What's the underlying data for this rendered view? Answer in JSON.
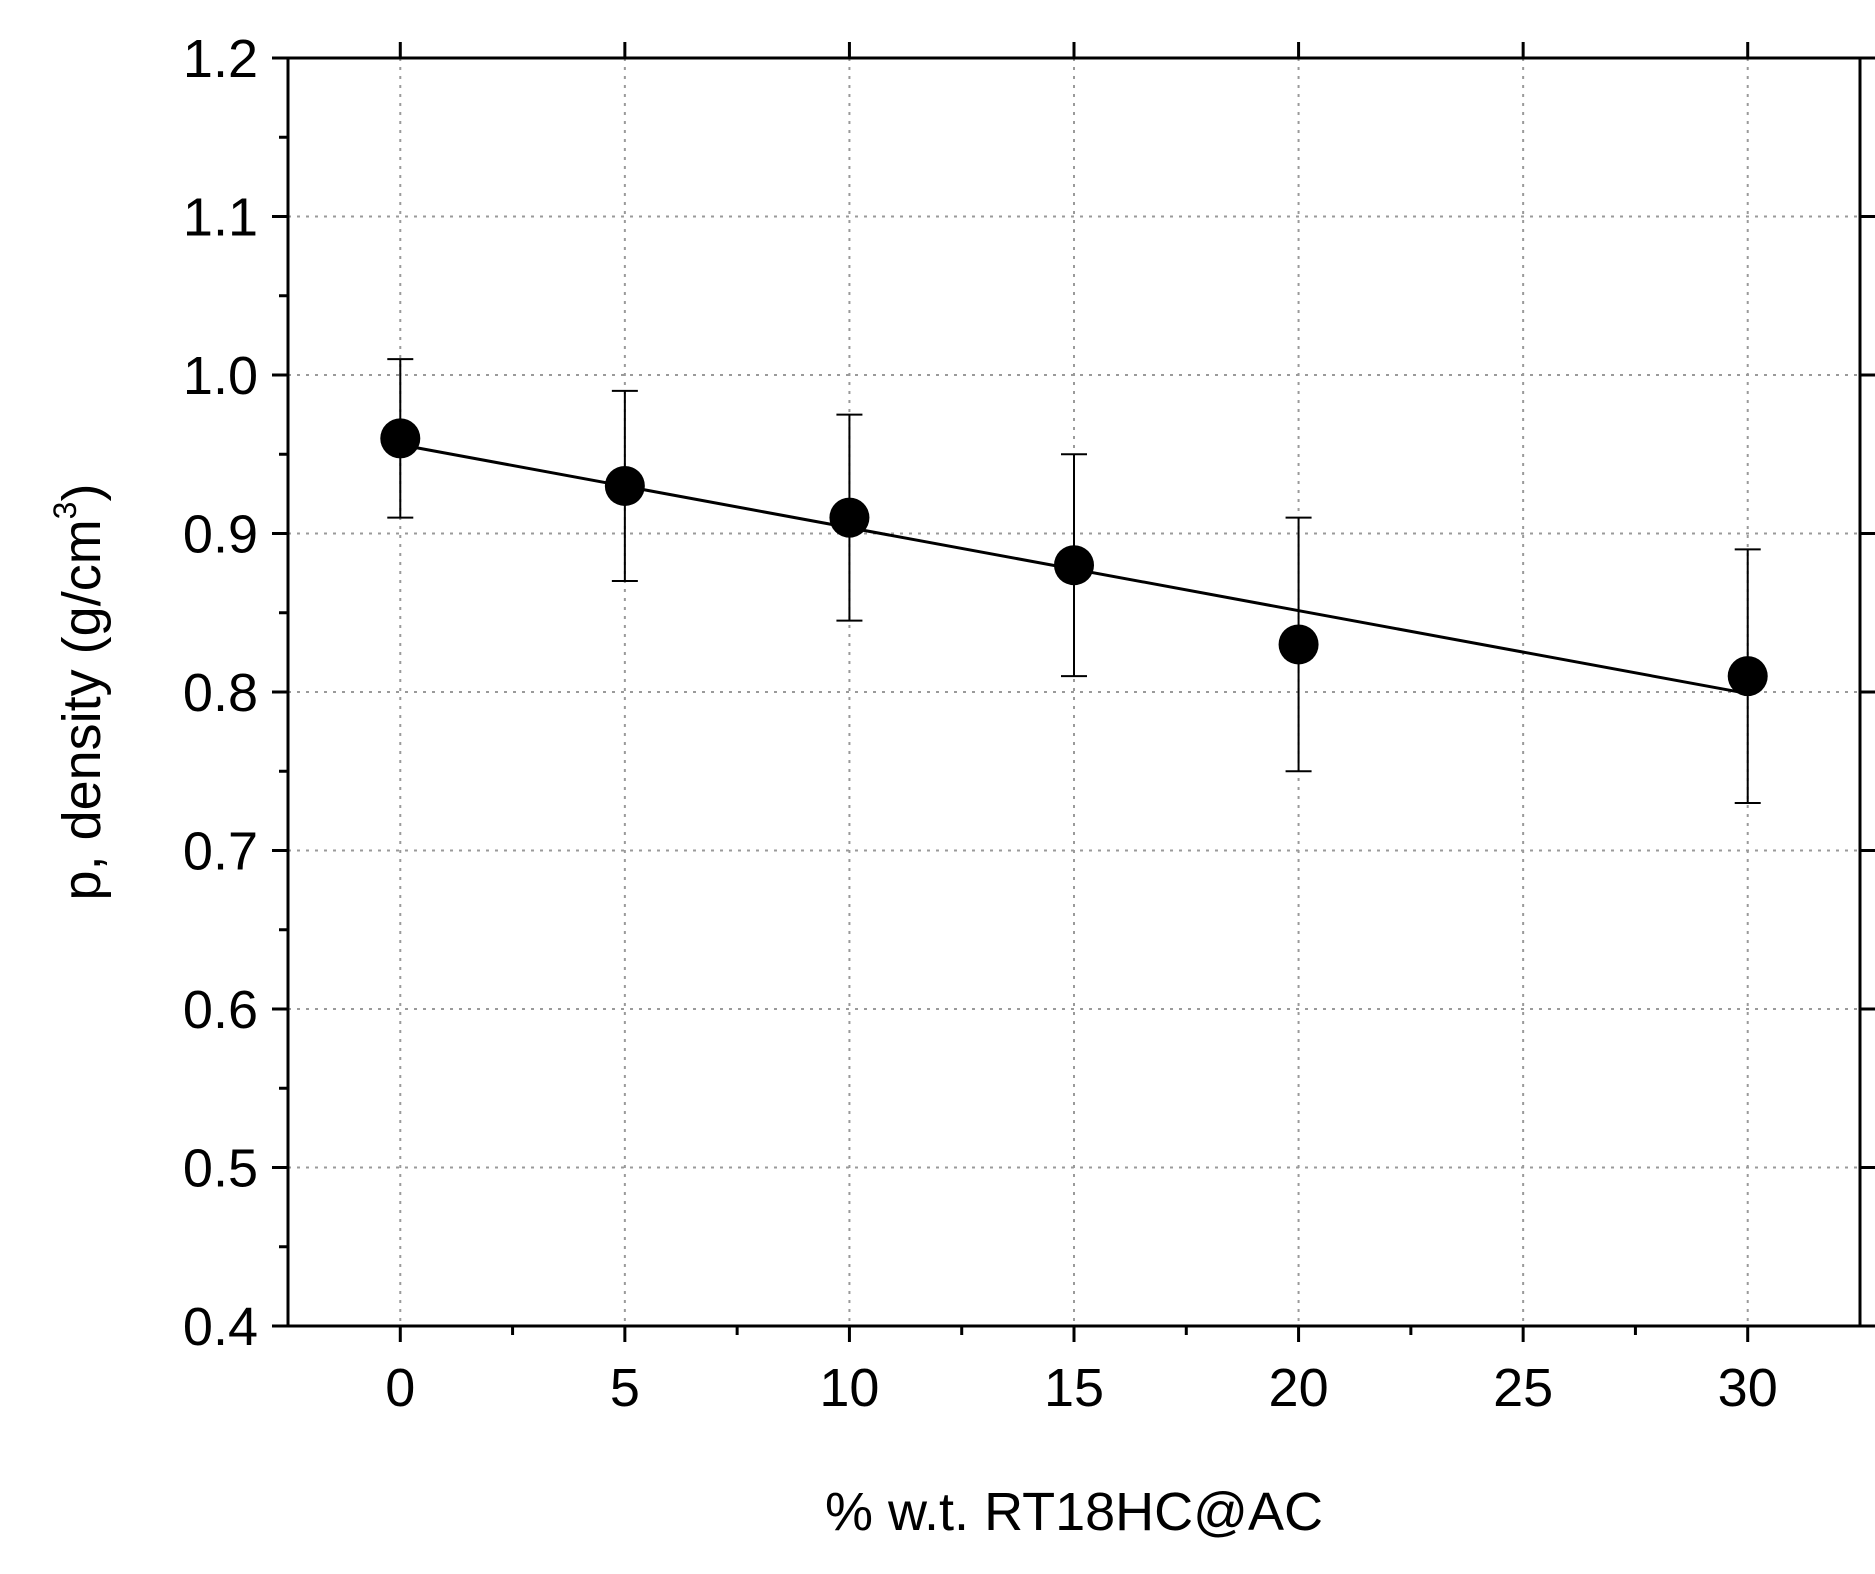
{
  "chart_data": {
    "type": "scatter",
    "title": "",
    "xlabel": "% w.t. RT18HC@AC",
    "ylabel_main": "p, density (g/cm",
    "ylabel_sup": "3",
    "ylabel_close": ")",
    "xlim": [
      -2.5,
      32.5
    ],
    "ylim": [
      0.4,
      1.2
    ],
    "xticks": [
      0,
      5,
      10,
      15,
      20,
      25,
      30
    ],
    "xtick_labels": [
      "0",
      "5",
      "10",
      "15",
      "20",
      "25",
      "30"
    ],
    "yticks": [
      0.4,
      0.5,
      0.6,
      0.7,
      0.8,
      0.9,
      1.0,
      1.1,
      1.2
    ],
    "ytick_labels": [
      "0.4",
      "0.5",
      "0.6",
      "0.7",
      "0.8",
      "0.9",
      "1.0",
      "1.1",
      "1.2"
    ],
    "grid": true,
    "series": [
      {
        "name": "density",
        "x": [
          0,
          5,
          10,
          15,
          20,
          30
        ],
        "y": [
          0.96,
          0.93,
          0.91,
          0.88,
          0.83,
          0.81
        ],
        "err_low": [
          0.91,
          0.87,
          0.845,
          0.81,
          0.75,
          0.73
        ],
        "err_high": [
          1.01,
          0.99,
          0.975,
          0.95,
          0.91,
          0.89
        ]
      }
    ],
    "fit_line": {
      "x": [
        0,
        30
      ],
      "y": [
        0.956,
        0.799
      ]
    }
  }
}
